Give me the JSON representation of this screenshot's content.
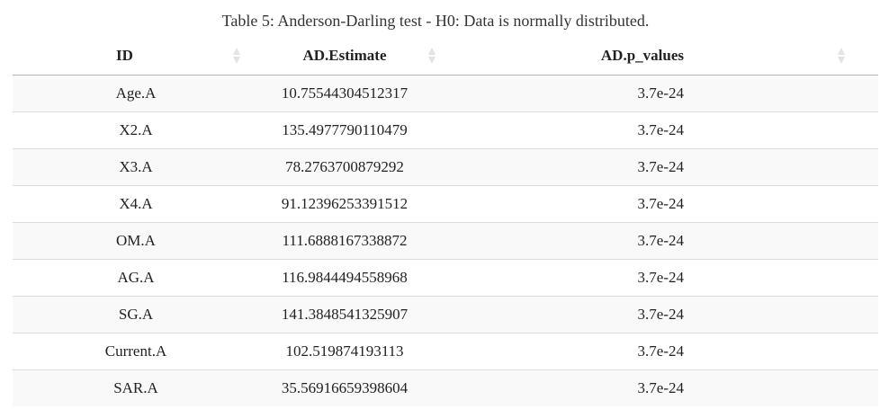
{
  "caption": "Table 5: Anderson-Darling test - H0: Data is normally distributed.",
  "table": {
    "headers": [
      "ID",
      "AD.Estimate",
      "AD.p_values"
    ],
    "rows": [
      {
        "id": "Age.A",
        "estimate": "10.75544304512317",
        "p_value": "3.7e-24"
      },
      {
        "id": "X2.A",
        "estimate": "135.4977790110479",
        "p_value": "3.7e-24"
      },
      {
        "id": "X3.A",
        "estimate": "78.2763700879292",
        "p_value": "3.7e-24"
      },
      {
        "id": "X4.A",
        "estimate": "91.12396253391512",
        "p_value": "3.7e-24"
      },
      {
        "id": "OM.A",
        "estimate": "111.6888167338872",
        "p_value": "3.7e-24"
      },
      {
        "id": "AG.A",
        "estimate": "116.9844494558968",
        "p_value": "3.7e-24"
      },
      {
        "id": "SG.A",
        "estimate": "141.3848541325907",
        "p_value": "3.7e-24"
      },
      {
        "id": "Current.A",
        "estimate": "102.519874193113",
        "p_value": "3.7e-24"
      },
      {
        "id": "SAR.A",
        "estimate": "35.56916659398604",
        "p_value": "3.7e-24"
      }
    ]
  },
  "icons": {
    "sort": "sort-both-icon"
  },
  "colors": {
    "stripe": "#f9f9f9",
    "rule": "#dddddd",
    "sort_icon": "#e3e3e3"
  }
}
